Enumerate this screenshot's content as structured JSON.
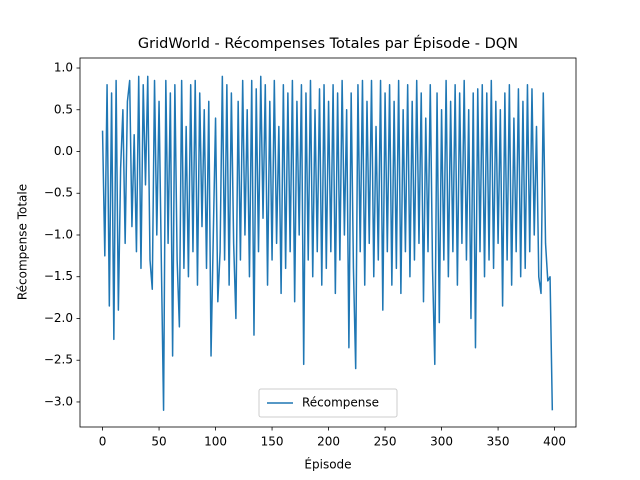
{
  "chart_data": {
    "type": "line",
    "title": "GridWorld - Récompenses Totales par Épisode - DQN",
    "x_label": "Épisode",
    "y_label": "Récompense Totale",
    "legend": "lower center",
    "xlim": [
      -19.95,
      418.95
    ],
    "ylim": [
      -3.3,
      1.12
    ],
    "xticks": [
      0,
      50,
      100,
      150,
      200,
      250,
      300,
      350,
      400
    ],
    "yticks": [
      {
        "value": 1,
        "label": "1.0"
      },
      {
        "value": 0.5,
        "label": "0.5"
      },
      {
        "value": 0,
        "label": "0.0"
      },
      {
        "value": -0.5,
        "label": "−0.5"
      },
      {
        "value": -1,
        "label": "−1.0"
      },
      {
        "value": -1.5,
        "label": "−1.5"
      },
      {
        "value": -2,
        "label": "−2.0"
      },
      {
        "value": -2.5,
        "label": "−2.5"
      },
      {
        "value": -3,
        "label": "−3.0"
      }
    ],
    "x": [
      0,
      2,
      4,
      6,
      8,
      10,
      12,
      14,
      16,
      18,
      20,
      22,
      24,
      26,
      28,
      30,
      32,
      34,
      36,
      38,
      40,
      42,
      44,
      46,
      48,
      50,
      52,
      54,
      56,
      58,
      60,
      62,
      64,
      66,
      68,
      70,
      72,
      74,
      76,
      78,
      80,
      82,
      84,
      86,
      88,
      90,
      92,
      94,
      96,
      98,
      100,
      102,
      104,
      106,
      108,
      110,
      112,
      114,
      116,
      118,
      120,
      122,
      124,
      126,
      128,
      130,
      132,
      134,
      136,
      138,
      140,
      142,
      144,
      146,
      148,
      150,
      152,
      154,
      156,
      158,
      160,
      162,
      164,
      166,
      168,
      170,
      172,
      174,
      176,
      178,
      180,
      182,
      184,
      186,
      188,
      190,
      192,
      194,
      196,
      198,
      200,
      202,
      204,
      206,
      208,
      210,
      212,
      214,
      216,
      218,
      220,
      222,
      224,
      226,
      228,
      230,
      232,
      234,
      236,
      238,
      240,
      242,
      244,
      246,
      248,
      250,
      252,
      254,
      256,
      258,
      260,
      262,
      264,
      266,
      268,
      270,
      272,
      274,
      276,
      278,
      280,
      282,
      284,
      286,
      288,
      290,
      292,
      294,
      296,
      298,
      300,
      302,
      304,
      306,
      308,
      310,
      312,
      314,
      316,
      318,
      320,
      322,
      324,
      326,
      328,
      330,
      332,
      334,
      336,
      338,
      340,
      342,
      344,
      346,
      348,
      350,
      352,
      354,
      356,
      358,
      360,
      362,
      364,
      366,
      368,
      370,
      372,
      374,
      376,
      378,
      380,
      382,
      384,
      386,
      388,
      390,
      392,
      394,
      396,
      398
    ],
    "series": [
      {
        "name": "Récompense",
        "color": "#1f77b4",
        "values": [
          0.25,
          -1.25,
          0.8,
          -1.85,
          0.7,
          -2.25,
          0.85,
          -1.9,
          -0.2,
          0.5,
          -1.1,
          0.6,
          0.85,
          -0.9,
          0.2,
          -1.2,
          0.9,
          -1.4,
          0.8,
          -0.4,
          0.9,
          -1.3,
          -1.65,
          0.85,
          -1.0,
          0.6,
          -1.3,
          -3.1,
          0.85,
          -1.1,
          0.7,
          -2.45,
          0.8,
          -1.3,
          -2.1,
          0.85,
          -1.4,
          0.3,
          -1.5,
          0.8,
          -1.2,
          0.85,
          -1.6,
          0.7,
          -0.9,
          0.5,
          -1.4,
          0.6,
          -2.45,
          -1.0,
          0.4,
          -1.8,
          -1.2,
          0.9,
          -1.3,
          0.8,
          -1.6,
          0.7,
          -1.1,
          -2.0,
          0.6,
          -1.3,
          0.85,
          -1.0,
          0.5,
          -1.5,
          0.85,
          -2.2,
          0.75,
          -1.2,
          0.9,
          -0.8,
          0.8,
          -1.6,
          0.6,
          -1.3,
          0.85,
          -1.1,
          0.3,
          -1.7,
          0.8,
          -1.4,
          0.7,
          -1.2,
          0.85,
          -1.8,
          0.6,
          -1.0,
          0.8,
          -2.55,
          0.7,
          -1.3,
          0.85,
          -1.5,
          0.5,
          -1.2,
          0.75,
          -1.6,
          0.8,
          -1.4,
          0.6,
          -1.2,
          0.8,
          -1.7,
          0.7,
          -1.3,
          0.85,
          -1.0,
          0.5,
          -2.35,
          0.7,
          -1.4,
          -2.6,
          0.8,
          -1.2,
          0.85,
          -1.6,
          0.6,
          -1.1,
          0.85,
          -1.5,
          0.3,
          -1.3,
          0.85,
          -1.9,
          0.7,
          -1.2,
          0.8,
          -1.6,
          0.6,
          -1.4,
          0.85,
          -1.7,
          0.5,
          -1.2,
          0.8,
          -1.5,
          0.6,
          -1.3,
          0.85,
          -1.1,
          0.7,
          -1.8,
          0.4,
          -1.2,
          0.8,
          -1.4,
          -2.55,
          0.7,
          -2.05,
          0.5,
          -1.3,
          0.85,
          -1.5,
          0.6,
          -1.2,
          0.8,
          -1.6,
          0.7,
          -1.1,
          0.85,
          -1.3,
          0.5,
          -2.0,
          0.7,
          -2.35,
          0.75,
          -1.2,
          0.8,
          -1.5,
          0.7,
          -1.3,
          0.85,
          -1.4,
          0.6,
          -1.1,
          0.5,
          -1.85,
          0.7,
          -1.3,
          0.8,
          -1.6,
          0.4,
          -1.2,
          0.75,
          -1.5,
          0.6,
          -1.4,
          0.8,
          -1.2,
          0.75,
          -1.0,
          0.3,
          -1.5,
          -1.7,
          0.7,
          -1.1,
          -1.55,
          -1.5,
          -3.1
        ]
      }
    ]
  }
}
